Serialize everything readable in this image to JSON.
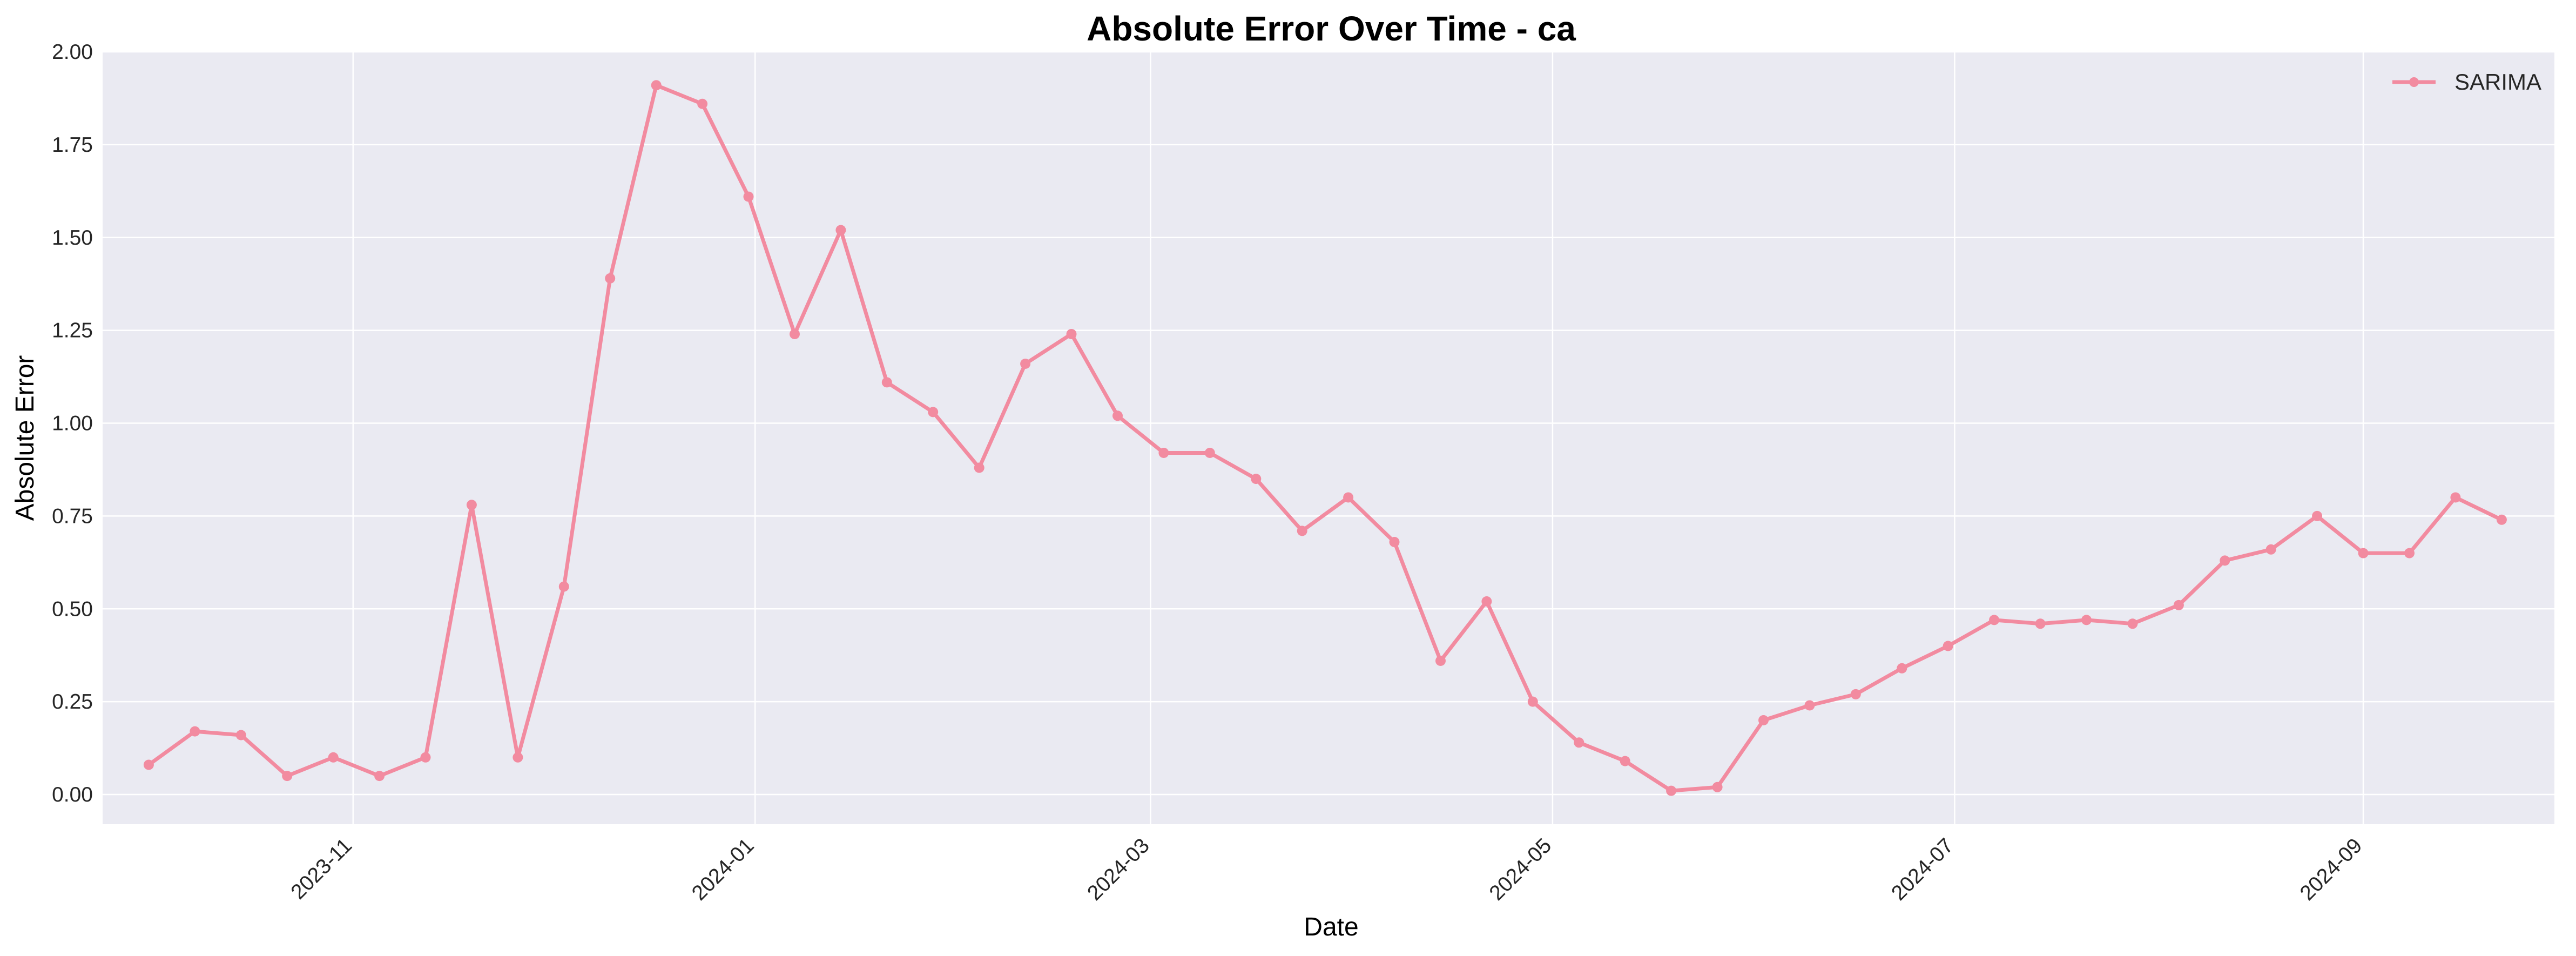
{
  "chart_data": {
    "type": "line",
    "title": "Absolute Error Over Time - ca",
    "xlabel": "Date",
    "ylabel": "Absolute Error",
    "ylim": [
      -0.08,
      2.0
    ],
    "xlim": [
      "2023-09-24",
      "2024-09-30"
    ],
    "grid": true,
    "legend_position": "top-right",
    "x_ticks": [
      "2023-11",
      "2024-01",
      "2024-03",
      "2024-05",
      "2024-07",
      "2024-09"
    ],
    "y_ticks": [
      "0.00",
      "0.25",
      "0.50",
      "0.75",
      "1.00",
      "1.25",
      "1.50",
      "1.75",
      "2.00"
    ],
    "colors": {
      "series": "#f28ba0",
      "plot_background": "#eaeaf2",
      "grid": "#ffffff"
    },
    "series": [
      {
        "name": "SARIMA",
        "x": [
          "2023-10-01",
          "2023-10-08",
          "2023-10-15",
          "2023-10-22",
          "2023-10-29",
          "2023-11-05",
          "2023-11-12",
          "2023-11-19",
          "2023-11-26",
          "2023-12-03",
          "2023-12-10",
          "2023-12-17",
          "2023-12-24",
          "2023-12-31",
          "2024-01-07",
          "2024-01-14",
          "2024-01-21",
          "2024-01-28",
          "2024-02-04",
          "2024-02-11",
          "2024-02-18",
          "2024-02-25",
          "2024-03-03",
          "2024-03-10",
          "2024-03-17",
          "2024-03-24",
          "2024-03-31",
          "2024-04-07",
          "2024-04-14",
          "2024-04-21",
          "2024-04-28",
          "2024-05-05",
          "2024-05-12",
          "2024-05-19",
          "2024-05-26",
          "2024-06-02",
          "2024-06-09",
          "2024-06-16",
          "2024-06-23",
          "2024-06-30",
          "2024-07-07",
          "2024-07-14",
          "2024-07-21",
          "2024-07-28",
          "2024-08-04",
          "2024-08-11",
          "2024-08-18",
          "2024-08-25",
          "2024-09-01",
          "2024-09-08",
          "2024-09-15",
          "2024-09-22"
        ],
        "values": [
          0.08,
          0.17,
          0.16,
          0.05,
          0.1,
          0.05,
          0.1,
          0.78,
          0.1,
          0.56,
          1.39,
          1.91,
          1.86,
          1.61,
          1.24,
          1.52,
          1.11,
          1.03,
          0.88,
          1.16,
          1.24,
          1.02,
          0.92,
          0.92,
          0.85,
          0.71,
          0.8,
          0.68,
          0.36,
          0.52,
          0.25,
          0.14,
          0.09,
          0.01,
          0.02,
          0.2,
          0.24,
          0.27,
          0.34,
          0.4,
          0.47,
          0.46,
          0.47,
          0.46,
          0.51,
          0.63,
          0.66,
          0.75,
          0.65,
          0.65,
          0.8,
          0.74
        ]
      }
    ]
  }
}
